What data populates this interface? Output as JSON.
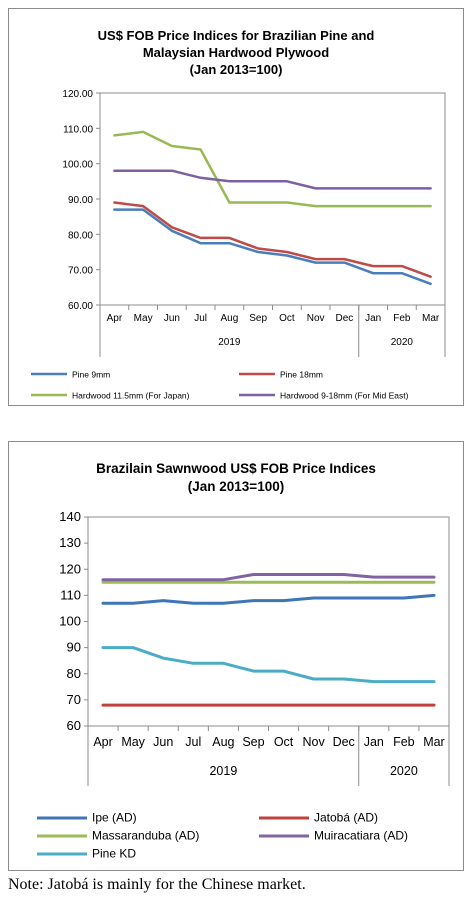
{
  "note": "Note: Jatobá is mainly for the Chinese market.",
  "chart_data": [
    {
      "type": "line",
      "title_lines": [
        "US$ FOB Price Indices for Brazilian Pine and",
        "Malaysian Hardwood Plywood",
        "(Jan 2013=100)"
      ],
      "categories": [
        "Apr",
        "May",
        "Jun",
        "Jul",
        "Aug",
        "Sep",
        "Oct",
        "Nov",
        "Dec",
        "Jan",
        "Feb",
        "Mar"
      ],
      "year_groups": [
        {
          "label": "2019",
          "from": 0,
          "to": 8
        },
        {
          "label": "2020",
          "from": 9,
          "to": 11
        }
      ],
      "ylim": [
        60,
        120
      ],
      "yticks": [
        60,
        70,
        80,
        90,
        100,
        110,
        120
      ],
      "ytick_labels": [
        "60.00",
        "70.00",
        "80.00",
        "90.00",
        "100.00",
        "110.00",
        "120.00"
      ],
      "grid": false,
      "legend_position": "bottom",
      "series": [
        {
          "name": "Pine 9mm",
          "color": "#4a7ebb",
          "values": [
            87,
            87,
            81,
            77.5,
            77.5,
            75,
            74,
            72,
            72,
            69,
            69,
            66
          ]
        },
        {
          "name": "Pine 18mm",
          "color": "#be4b48",
          "values": [
            89,
            88,
            82,
            79,
            79,
            76,
            75,
            73,
            73,
            71,
            71,
            68
          ]
        },
        {
          "name": "Hardwood 11.5mm (For Japan)",
          "color": "#98b954",
          "values": [
            108,
            109,
            105,
            104,
            89,
            89,
            89,
            88,
            88,
            88,
            88,
            88
          ]
        },
        {
          "name": "Hardwood 9-18mm (For Mid East)",
          "color": "#7d60a0",
          "values": [
            98,
            98,
            98,
            96,
            95,
            95,
            95,
            93,
            93,
            93,
            93,
            93
          ]
        }
      ]
    },
    {
      "type": "line",
      "title_lines": [
        "Brazilain Sawnwood US$ FOB Price Indices",
        "(Jan 2013=100)"
      ],
      "categories": [
        "Apr",
        "May",
        "Jun",
        "Jul",
        "Aug",
        "Sep",
        "Oct",
        "Nov",
        "Dec",
        "Jan",
        "Feb",
        "Mar"
      ],
      "year_groups": [
        {
          "label": "2019",
          "from": 0,
          "to": 8
        },
        {
          "label": "2020",
          "from": 9,
          "to": 11
        }
      ],
      "ylim": [
        60,
        140
      ],
      "yticks": [
        60,
        70,
        80,
        90,
        100,
        110,
        120,
        130,
        140
      ],
      "ytick_labels": [
        "60",
        "70",
        "80",
        "90",
        "100",
        "110",
        "120",
        "130",
        "140"
      ],
      "grid": false,
      "legend_position": "bottom",
      "series": [
        {
          "name": "Ipe (AD)",
          "color": "#3f76b8",
          "values": [
            107,
            107,
            108,
            107,
            107,
            108,
            108,
            109,
            109,
            109,
            109,
            110
          ]
        },
        {
          "name": "Jatobá (AD)",
          "color": "#c2403c",
          "values": [
            68,
            68,
            68,
            68,
            68,
            68,
            68,
            68,
            68,
            68,
            68,
            68
          ]
        },
        {
          "name": "Massaranduba (AD)",
          "color": "#9bbb59",
          "values": [
            115,
            115,
            115,
            115,
            115,
            115,
            115,
            115,
            115,
            115,
            115,
            115
          ]
        },
        {
          "name": "Muiracatiara (AD)",
          "color": "#8064a2",
          "values": [
            116,
            116,
            116,
            116,
            116,
            118,
            118,
            118,
            118,
            117,
            117,
            117
          ]
        },
        {
          "name": "Pine KD",
          "color": "#4bacc6",
          "values": [
            90,
            90,
            86,
            84,
            84,
            81,
            81,
            78,
            78,
            77,
            77,
            77
          ]
        }
      ]
    }
  ]
}
